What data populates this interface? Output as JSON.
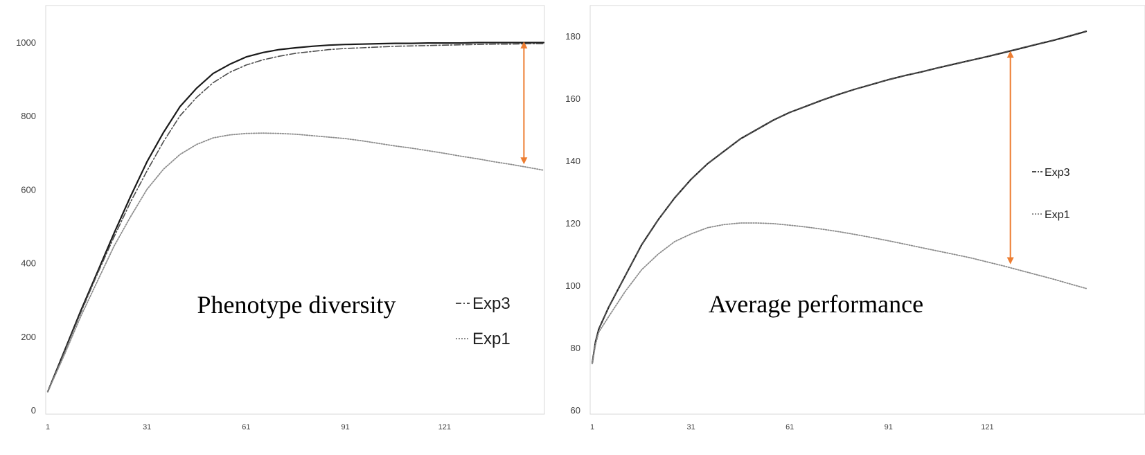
{
  "colors": {
    "exp_solid": "#1a1a1a",
    "exp3": "#4d4d4d",
    "exp1": "#8c8c8c",
    "arrow": "#ed7d31",
    "frame": "#d9d9d9"
  },
  "chart_data": [
    {
      "type": "line",
      "title": "Phenotype diversity",
      "xlabel": "",
      "ylabel": "",
      "x_ticks": [
        "1",
        "31",
        "61",
        "91",
        "121"
      ],
      "y_ticks": [
        "0",
        "200",
        "400",
        "600",
        "800",
        "1000"
      ],
      "xlim": [
        1,
        151
      ],
      "ylim": [
        0,
        1000
      ],
      "grid": false,
      "legend_position": "bottom-right",
      "legend": [
        {
          "label": "Exp3",
          "style": "dashdot"
        },
        {
          "label": "Exp1",
          "style": "dotted"
        }
      ],
      "series": [
        {
          "style": "solid",
          "x": [
            1,
            6,
            11,
            16,
            21,
            26,
            31,
            36,
            41,
            46,
            51,
            56,
            61,
            66,
            71,
            76,
            81,
            86,
            91,
            96,
            101,
            106,
            111,
            116,
            121,
            126,
            131,
            136,
            141,
            146,
            151
          ],
          "y": [
            50,
            160,
            270,
            375,
            480,
            580,
            675,
            755,
            825,
            875,
            915,
            940,
            960,
            972,
            980,
            985,
            989,
            992,
            994,
            995,
            996,
            997,
            997,
            998,
            998,
            998,
            999,
            999,
            999,
            999,
            999
          ]
        },
        {
          "name": "Exp3",
          "style": "dashdot",
          "x": [
            1,
            6,
            11,
            16,
            21,
            26,
            31,
            36,
            41,
            46,
            51,
            56,
            61,
            66,
            71,
            76,
            81,
            86,
            91,
            96,
            101,
            106,
            111,
            116,
            121,
            126,
            131,
            136,
            141,
            146,
            151
          ],
          "y": [
            50,
            158,
            265,
            370,
            470,
            565,
            650,
            730,
            800,
            850,
            890,
            918,
            938,
            952,
            962,
            970,
            975,
            980,
            983,
            985,
            987,
            989,
            990,
            991,
            992,
            993,
            994,
            995,
            995,
            996,
            996
          ]
        },
        {
          "name": "Exp1",
          "style": "dotted",
          "x": [
            1,
            6,
            11,
            16,
            21,
            26,
            31,
            36,
            41,
            46,
            51,
            56,
            61,
            66,
            71,
            76,
            81,
            86,
            91,
            96,
            101,
            106,
            111,
            116,
            121,
            126,
            131,
            136,
            141,
            146,
            151
          ],
          "y": [
            50,
            150,
            255,
            350,
            445,
            525,
            600,
            655,
            695,
            722,
            740,
            748,
            752,
            753,
            752,
            750,
            746,
            742,
            738,
            732,
            725,
            718,
            712,
            705,
            698,
            690,
            683,
            675,
            668,
            660,
            652
          ]
        }
      ],
      "annotations": [
        {
          "type": "double-arrow",
          "x": 145,
          "y_from": 1000,
          "y_to": 670
        }
      ]
    },
    {
      "type": "line",
      "title": "Average performance",
      "xlabel": "",
      "ylabel": "",
      "x_ticks": [
        "1",
        "31",
        "61",
        "91",
        "121"
      ],
      "y_ticks": [
        "60",
        "80",
        "100",
        "120",
        "140",
        "160",
        "180"
      ],
      "xlim": [
        1,
        151
      ],
      "ylim": [
        60,
        185
      ],
      "grid": false,
      "legend_position": "right",
      "legend": [
        {
          "label": "Exp3",
          "style": "dashdot"
        },
        {
          "label": "Exp1",
          "style": "dotted"
        }
      ],
      "series": [
        {
          "style": "solid",
          "x": [
            1,
            2,
            3,
            6,
            11,
            16,
            21,
            26,
            31,
            36,
            41,
            46,
            51,
            56,
            61,
            66,
            71,
            76,
            81,
            86,
            91,
            96,
            101,
            106,
            111,
            116,
            121,
            126,
            131,
            136,
            141,
            146,
            151
          ],
          "y": [
            75,
            82,
            86,
            93,
            103,
            113,
            121,
            128,
            134,
            139,
            143,
            147,
            150,
            153,
            155.5,
            157.5,
            159.5,
            161.3,
            163,
            164.5,
            166,
            167.3,
            168.5,
            169.8,
            171,
            172.2,
            173.4,
            174.7,
            176,
            177.3,
            178.6,
            180,
            181.5
          ]
        },
        {
          "name": "Exp3",
          "style": "dashdot",
          "x": [
            1,
            2,
            3,
            6,
            11,
            16,
            21,
            26,
            31,
            36,
            41,
            46,
            51,
            56,
            61,
            66,
            71,
            76,
            81,
            86,
            91,
            96,
            101,
            106,
            111,
            116,
            121,
            126,
            131,
            136,
            141,
            146,
            151
          ],
          "y": [
            75,
            82,
            86,
            93,
            103,
            113,
            121,
            128,
            134,
            139,
            143,
            147,
            150,
            153,
            155.5,
            157.5,
            159.5,
            161.3,
            163,
            164.5,
            166,
            167.3,
            168.5,
            169.8,
            171,
            172.2,
            173.5,
            174.8,
            176.1,
            177.4,
            178.7,
            180.1,
            181.6
          ]
        },
        {
          "name": "Exp1",
          "style": "dotted",
          "x": [
            1,
            2,
            3,
            6,
            11,
            16,
            21,
            26,
            31,
            36,
            41,
            46,
            51,
            56,
            61,
            66,
            71,
            76,
            81,
            86,
            91,
            96,
            101,
            106,
            111,
            116,
            121,
            126,
            131,
            136,
            141,
            146,
            151
          ],
          "y": [
            75,
            81,
            85,
            90,
            98,
            105,
            110,
            114,
            116.5,
            118.5,
            119.5,
            120,
            120,
            119.8,
            119.3,
            118.7,
            118,
            117.2,
            116.3,
            115.3,
            114.3,
            113.2,
            112.1,
            111,
            109.9,
            108.8,
            107.5,
            106.2,
            104.8,
            103.4,
            102,
            100.5,
            99
          ]
        }
      ],
      "annotations": [
        {
          "type": "double-arrow",
          "x": 128,
          "y_from": 175,
          "y_to": 107
        }
      ]
    }
  ]
}
